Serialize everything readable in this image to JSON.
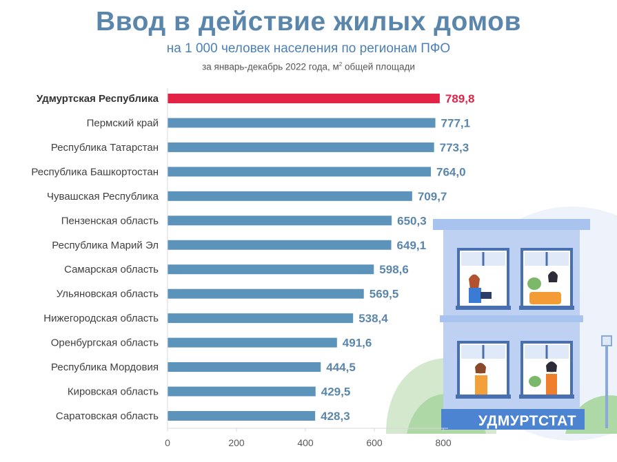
{
  "header": {
    "title": "Ввод в действие жилых домов",
    "subtitle": "на 1 000 человек населения по регионам ПФО",
    "period_text": "за январь-декабрь 2022 года, м",
    "period_sup": "2",
    "period_suffix": " общей площади"
  },
  "branding": {
    "text": "УДМУРТСТАТ"
  },
  "colors": {
    "bar": "#5b93bb",
    "highlight": "#e32345",
    "value": "#5b86ac"
  },
  "chart_data": {
    "type": "bar",
    "orientation": "horizontal",
    "categories": [
      "Удмуртская Республика",
      "Пермский край",
      "Республика Татарстан",
      "Республика Башкортостан",
      "Чувашская Республика",
      "Пензенская область",
      "Республика  Марий Эл",
      "Самарская область",
      "Ульяновская область",
      "Нижегородская область",
      "Оренбургская область",
      "Республика Мордовия",
      "Кировская область",
      "Саратовская область"
    ],
    "values": [
      789.8,
      777.1,
      773.3,
      764.0,
      709.7,
      650.3,
      649.1,
      598.6,
      569.5,
      538.4,
      491.6,
      444.5,
      429.5,
      428.3
    ],
    "value_labels": [
      "789,8",
      "777,1",
      "773,3",
      "764,0",
      "709,7",
      "650,3",
      "649,1",
      "598,6",
      "569,5",
      "538,4",
      "491,6",
      "444,5",
      "429,5",
      "428,3"
    ],
    "highlight_index": 0,
    "xlim": [
      0,
      800
    ],
    "xticks": [
      0,
      200,
      400,
      600,
      800
    ],
    "xtick_labels": [
      "0",
      "200",
      "400",
      "600",
      "800"
    ],
    "grid": false,
    "legend": "none"
  }
}
